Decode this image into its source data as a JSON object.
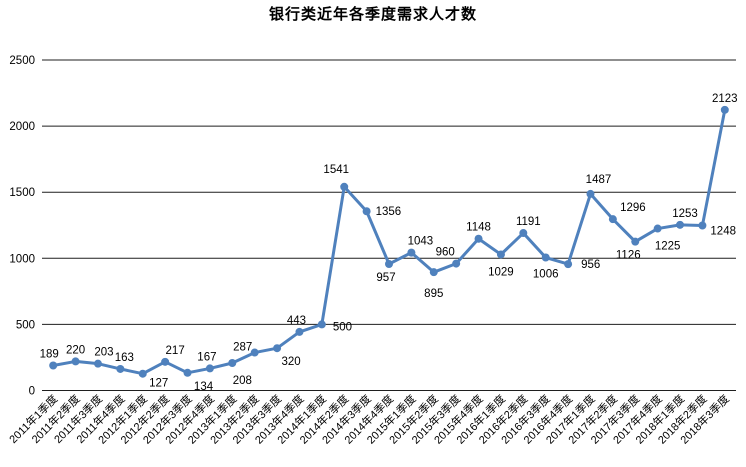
{
  "chart_data": {
    "type": "line",
    "title": "银行类近年各季度需求人才数",
    "categories": [
      "2011年1季度",
      "2011年2季度",
      "2011年3季度",
      "2011年4季度",
      "2012年1季度",
      "2012年2季度",
      "2012年3季度",
      "2012年4季度",
      "2013年1季度",
      "2013年2季度",
      "2013年3季度",
      "2013年4季度",
      "2014年1季度",
      "2014年2季度",
      "2014年3季度",
      "2014年4季度",
      "2015年1季度",
      "2015年2季度",
      "2015年3季度",
      "2015年4季度",
      "2016年1季度",
      "2016年2季度",
      "2016年3季度",
      "2016年4季度",
      "2017年1季度",
      "2017年2季度",
      "2017年3季度",
      "2017年4季度",
      "2018年1季度",
      "2018年2季度",
      "2018年3季度"
    ],
    "values": [
      189,
      220,
      203,
      163,
      127,
      217,
      134,
      167,
      208,
      287,
      320,
      443,
      500,
      1541,
      1356,
      957,
      1043,
      895,
      960,
      1148,
      1029,
      1191,
      1006,
      956,
      1487,
      1296,
      1126,
      1225,
      1253,
      1248,
      2123
    ],
    "xlabel": "",
    "ylabel": "",
    "ylim": [
      0,
      2500
    ],
    "yticks": [
      0,
      500,
      1000,
      1500,
      2000,
      2500
    ],
    "grid": "horizontal",
    "legend_position": "none",
    "line_color": "#4F81BD",
    "grid_color": "#1f1f1f",
    "text_color": "#000000",
    "marker": "circle",
    "label_pos": [
      "a",
      "a",
      "a",
      "a",
      "b",
      "a",
      "b",
      "a",
      "b",
      "a",
      "b",
      "a",
      "r",
      "a",
      "r",
      "b",
      "a",
      "b",
      "a",
      "a",
      "b",
      "a",
      "b",
      "r",
      "a",
      "a",
      "b",
      "b",
      "a",
      "r",
      "a"
    ],
    "label_dx": [
      -4,
      0,
      6,
      4,
      16,
      10,
      16,
      -3,
      10,
      -12,
      14,
      -3,
      3,
      -8,
      1,
      -3,
      9,
      0,
      -11,
      0,
      0,
      5,
      0,
      5,
      8,
      20,
      -7,
      10,
      5,
      0,
      0
    ],
    "label_dy": [
      0,
      0,
      0,
      0,
      -4,
      0,
      0,
      0,
      4,
      6,
      0,
      0,
      2,
      -6,
      0,
      0,
      0,
      8,
      0,
      0,
      4,
      0,
      3,
      0,
      -3,
      0,
      0,
      4,
      0,
      5,
      0
    ]
  }
}
